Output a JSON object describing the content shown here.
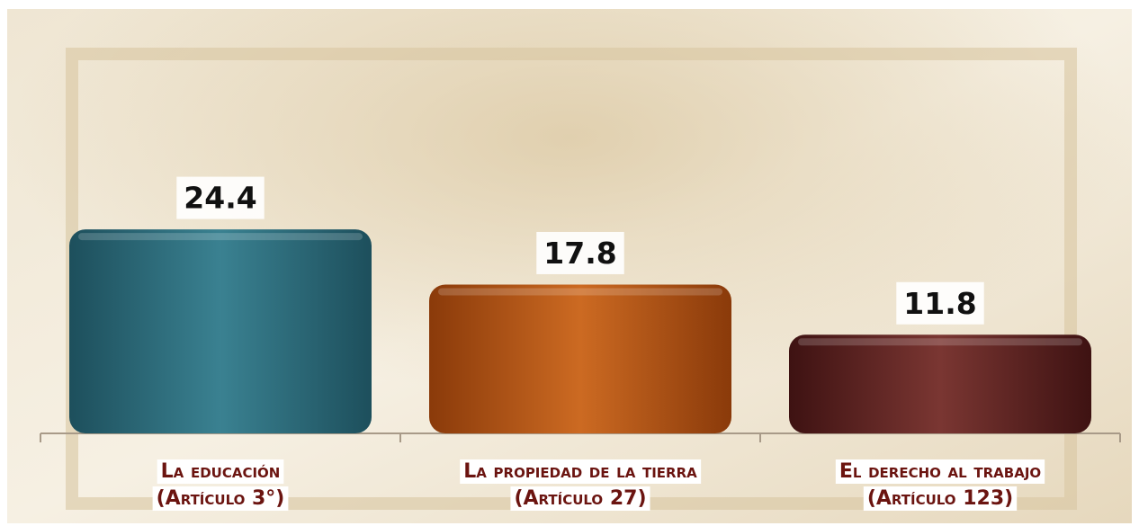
{
  "chart_data": {
    "type": "bar",
    "categories": [
      [
        "La educación",
        "(Artículo 3°)"
      ],
      [
        "La propiedad de la tierra",
        "(Artículo 27)"
      ],
      [
        "El derecho al trabajo",
        "(Artículo 123)"
      ]
    ],
    "values": [
      24.4,
      17.8,
      11.8
    ],
    "colors": [
      [
        "#1d4f5c",
        "#3a8191",
        "#1d4f5c"
      ],
      [
        "#8a3a0a",
        "#cc6a22",
        "#8a3a0a"
      ],
      [
        "#3e1212",
        "#7a3632",
        "#3e1212"
      ]
    ]
  }
}
